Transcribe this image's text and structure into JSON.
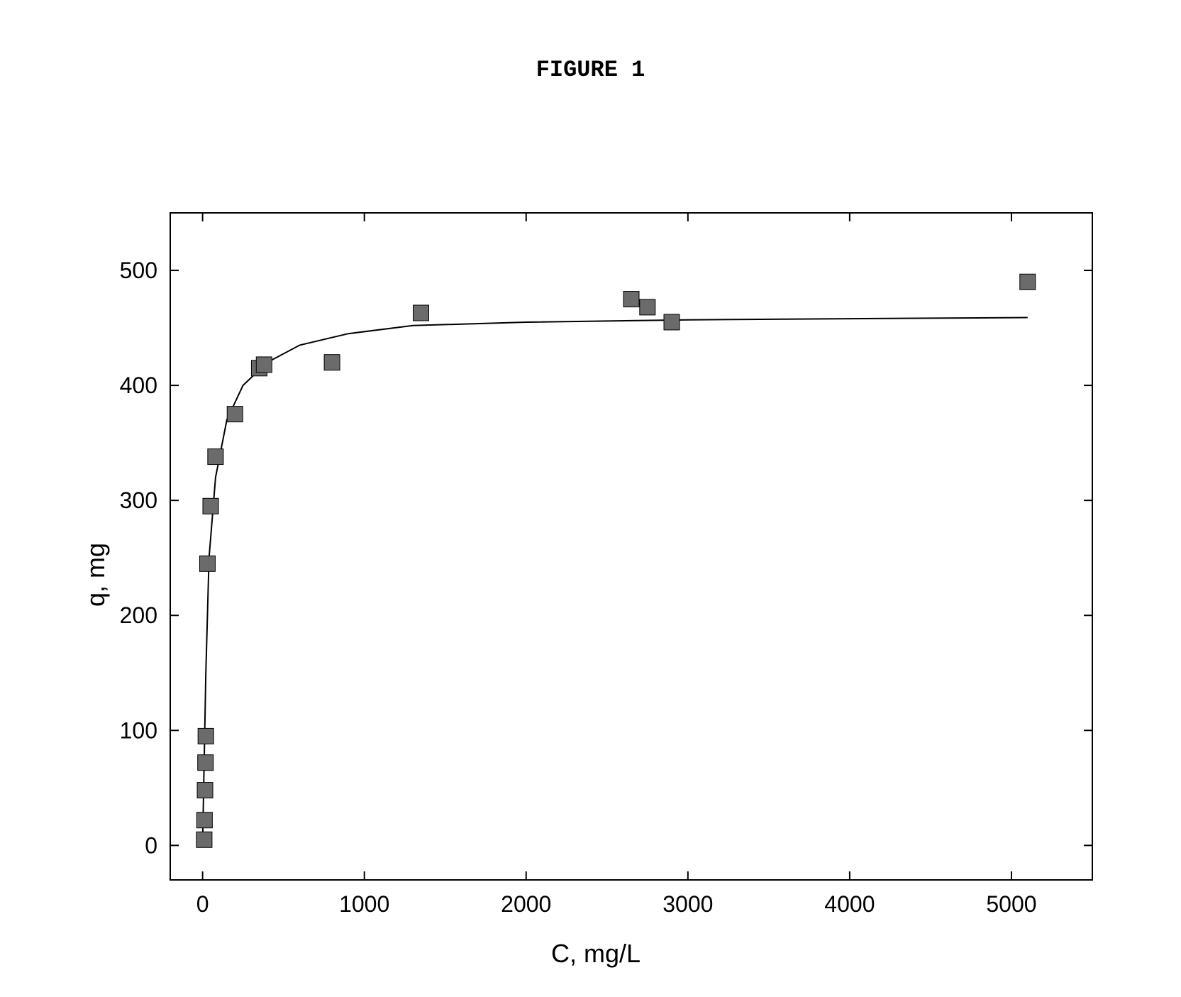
{
  "figure_title": "FIGURE 1",
  "chart": {
    "type": "scatter_with_line",
    "xlabel": "C, mg/L",
    "ylabel": "q, mg",
    "xlim": [
      -200,
      5500
    ],
    "ylim": [
      -30,
      550
    ],
    "xticks": [
      0,
      1000,
      2000,
      3000,
      4000,
      5000
    ],
    "yticks": [
      0,
      100,
      200,
      300,
      400,
      500
    ],
    "background_color": "#ffffff",
    "border_color": "#000000",
    "border_width": 2,
    "tick_length": 12,
    "tick_width": 2,
    "tick_fontsize": 32,
    "label_fontsize": 36,
    "title_fontsize": 32,
    "marker_style": "square",
    "marker_size": 22,
    "marker_fill": "#6b6b6b",
    "marker_stroke": "#000000",
    "marker_stroke_width": 1,
    "line_color": "#000000",
    "line_width": 2,
    "data_points": [
      {
        "x": 10,
        "y": 5
      },
      {
        "x": 12,
        "y": 22
      },
      {
        "x": 15,
        "y": 48
      },
      {
        "x": 18,
        "y": 72
      },
      {
        "x": 20,
        "y": 95
      },
      {
        "x": 30,
        "y": 245
      },
      {
        "x": 50,
        "y": 295
      },
      {
        "x": 80,
        "y": 338
      },
      {
        "x": 200,
        "y": 375
      },
      {
        "x": 350,
        "y": 415
      },
      {
        "x": 380,
        "y": 418
      },
      {
        "x": 800,
        "y": 420
      },
      {
        "x": 1350,
        "y": 463
      },
      {
        "x": 2650,
        "y": 475
      },
      {
        "x": 2750,
        "y": 468
      },
      {
        "x": 2900,
        "y": 455
      },
      {
        "x": 5100,
        "y": 490
      }
    ],
    "fit_curve": [
      {
        "x": 0,
        "y": 0
      },
      {
        "x": 20,
        "y": 150
      },
      {
        "x": 40,
        "y": 250
      },
      {
        "x": 80,
        "y": 320
      },
      {
        "x": 150,
        "y": 370
      },
      {
        "x": 250,
        "y": 400
      },
      {
        "x": 400,
        "y": 420
      },
      {
        "x": 600,
        "y": 435
      },
      {
        "x": 900,
        "y": 445
      },
      {
        "x": 1300,
        "y": 452
      },
      {
        "x": 2000,
        "y": 455
      },
      {
        "x": 3000,
        "y": 457
      },
      {
        "x": 4000,
        "y": 458
      },
      {
        "x": 5100,
        "y": 459
      }
    ]
  }
}
